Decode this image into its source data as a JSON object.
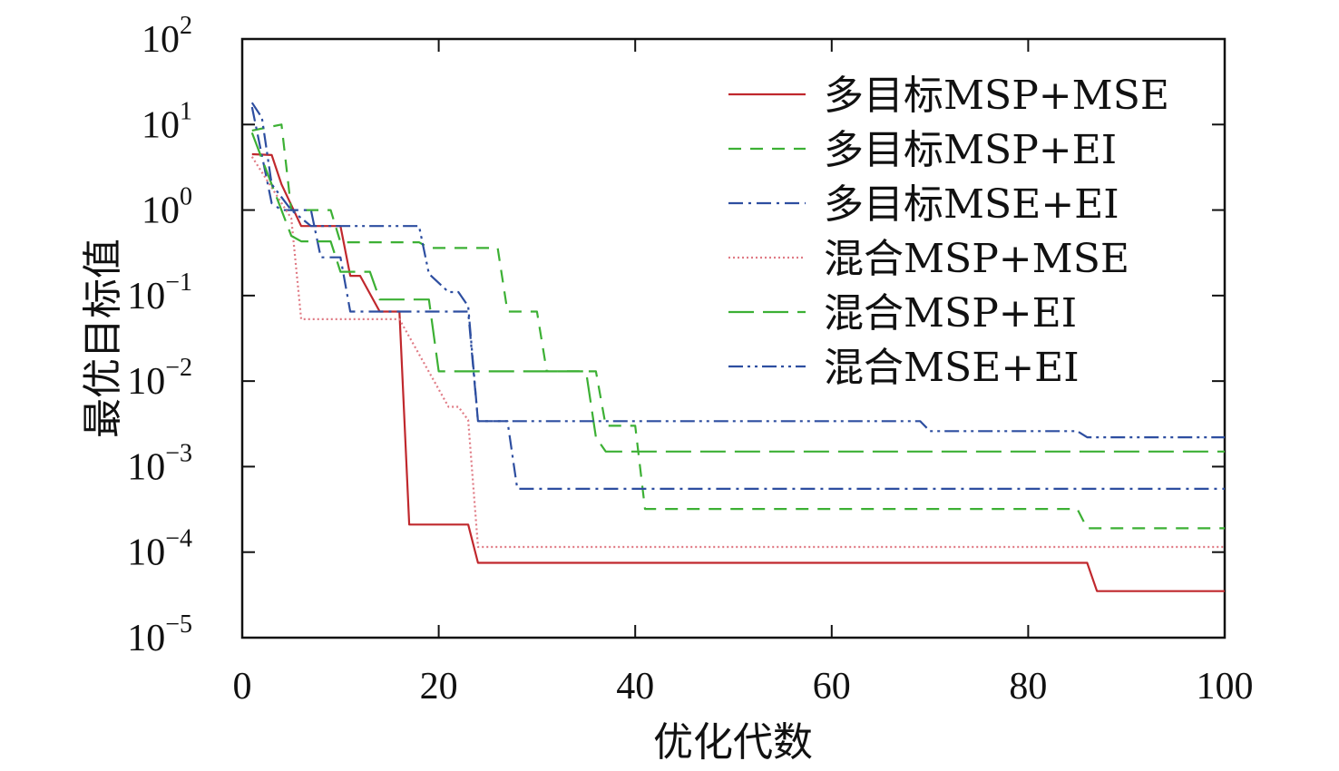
{
  "chart_data": {
    "type": "line",
    "title": "",
    "xlabel": "优化代数",
    "ylabel": "最优目标值",
    "xlim": [
      0,
      100
    ],
    "ylim": [
      1e-05,
      100
    ],
    "yscale": "log",
    "grid": false,
    "legend_position": "top-right",
    "x_ticks": [
      {
        "value": 0,
        "label": "0"
      },
      {
        "value": 20,
        "label": "20"
      },
      {
        "value": 40,
        "label": "40"
      },
      {
        "value": 60,
        "label": "60"
      },
      {
        "value": 80,
        "label": "80"
      },
      {
        "value": 100,
        "label": "100"
      }
    ],
    "y_ticks": [
      {
        "value": 100,
        "base": "10",
        "exp": "2"
      },
      {
        "value": 10,
        "base": "10",
        "exp": "1"
      },
      {
        "value": 1,
        "base": "10",
        "exp": "0"
      },
      {
        "value": 0.1,
        "base": "10",
        "exp": "−1"
      },
      {
        "value": 0.01,
        "base": "10",
        "exp": "−2"
      },
      {
        "value": 0.001,
        "base": "10",
        "exp": "−3"
      },
      {
        "value": 0.0001,
        "base": "10",
        "exp": "−4"
      },
      {
        "value": 1e-05,
        "base": "10",
        "exp": "−5"
      }
    ],
    "series": [
      {
        "name": "多目标MSP+MSE",
        "color": "#c0282d",
        "dash": "",
        "x": [
          1,
          3,
          4,
          6,
          10,
          11,
          12,
          14,
          16,
          17,
          23,
          24,
          86,
          87,
          100
        ],
        "y": [
          4.5,
          4.4,
          2.0,
          0.65,
          0.65,
          0.17,
          0.17,
          0.065,
          0.065,
          0.00021,
          0.00021,
          7.5e-05,
          7.5e-05,
          3.5e-05,
          3.5e-05
        ]
      },
      {
        "name": "多目标MSP+EI",
        "color": "#3cb034",
        "dash": "14,10",
        "x": [
          1,
          4,
          5,
          9,
          10,
          18,
          19,
          26,
          27,
          30,
          31,
          36,
          37,
          40,
          41,
          85,
          86,
          100
        ],
        "y": [
          8.5,
          10.0,
          1.0,
          1.0,
          0.42,
          0.42,
          0.36,
          0.36,
          0.065,
          0.065,
          0.013,
          0.013,
          0.003,
          0.003,
          0.00032,
          0.00032,
          0.00019,
          0.00019
        ]
      },
      {
        "name": "多目标MSE+EI",
        "color": "#2d4ea0",
        "dash": "16,6,3,6",
        "x": [
          1,
          3,
          4,
          7,
          8,
          10,
          11,
          23,
          24,
          27,
          28,
          100
        ],
        "y": [
          16.0,
          1.2,
          1.0,
          1.0,
          0.28,
          0.28,
          0.065,
          0.065,
          0.0034,
          0.0034,
          0.00055,
          0.00055
        ]
      },
      {
        "name": "混合MSP+MSE",
        "color": "#e07b85",
        "dash": "2,3",
        "x": [
          1,
          5,
          6,
          15,
          16,
          21,
          22,
          23,
          24,
          100
        ],
        "y": [
          4.2,
          0.8,
          0.053,
          0.053,
          0.053,
          0.005,
          0.005,
          0.0035,
          0.000115,
          0.000115
        ]
      },
      {
        "name": "混合MSP+EI",
        "color": "#3cb034",
        "dash": "28,10",
        "x": [
          1,
          5,
          6,
          9,
          10,
          13,
          14,
          19,
          20,
          35,
          36,
          37,
          100
        ],
        "y": [
          8.0,
          0.5,
          0.43,
          0.43,
          0.19,
          0.19,
          0.09,
          0.09,
          0.013,
          0.013,
          0.0022,
          0.0015,
          0.0015
        ]
      },
      {
        "name": "混合MSE+EI",
        "color": "#2d4ea0",
        "dash": "16,5,3,5,3,5",
        "x": [
          1,
          2,
          3,
          5,
          7,
          18,
          19,
          21,
          22,
          23,
          24,
          69,
          70,
          85,
          86,
          100
        ],
        "y": [
          18.0,
          12.0,
          2.0,
          1.0,
          0.65,
          0.65,
          0.18,
          0.11,
          0.11,
          0.075,
          0.0034,
          0.0034,
          0.0026,
          0.0026,
          0.0022,
          0.0022
        ]
      }
    ]
  }
}
